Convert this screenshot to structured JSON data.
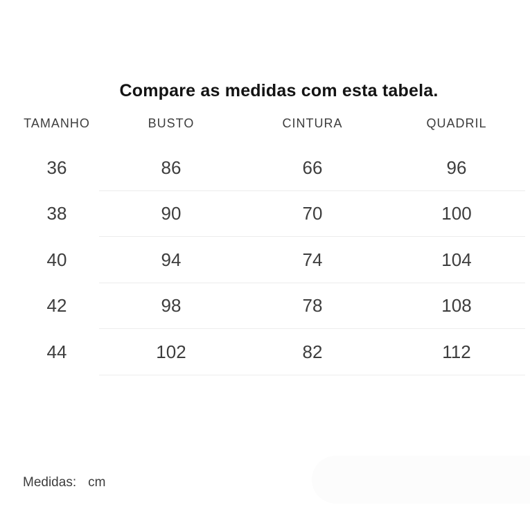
{
  "title": "Compare as medidas com esta tabela.",
  "table": {
    "columns": [
      "TAMANHO",
      "BUSTO",
      "CINTURA",
      "QUADRIL"
    ],
    "rows": [
      [
        "36",
        "86",
        "66",
        "96"
      ],
      [
        "38",
        "90",
        "70",
        "100"
      ],
      [
        "40",
        "94",
        "74",
        "104"
      ],
      [
        "42",
        "98",
        "78",
        "108"
      ],
      [
        "44",
        "102",
        "82",
        "112"
      ]
    ]
  },
  "footer": {
    "label": "Medidas:",
    "unit": "cm"
  },
  "colors": {
    "background": "#ffffff",
    "title": "#131313",
    "text": "#3d3d3d",
    "divider": "#ececec",
    "pill": "#fcfcfc"
  },
  "chart_data": {
    "type": "table",
    "title": "Compare as medidas com esta tabela.",
    "columns": [
      "TAMANHO",
      "BUSTO",
      "CINTURA",
      "QUADRIL"
    ],
    "rows": [
      [
        36,
        86,
        66,
        96
      ],
      [
        38,
        90,
        70,
        100
      ],
      [
        40,
        94,
        74,
        104
      ],
      [
        42,
        98,
        78,
        108
      ],
      [
        44,
        102,
        82,
        112
      ]
    ],
    "unit": "cm"
  }
}
